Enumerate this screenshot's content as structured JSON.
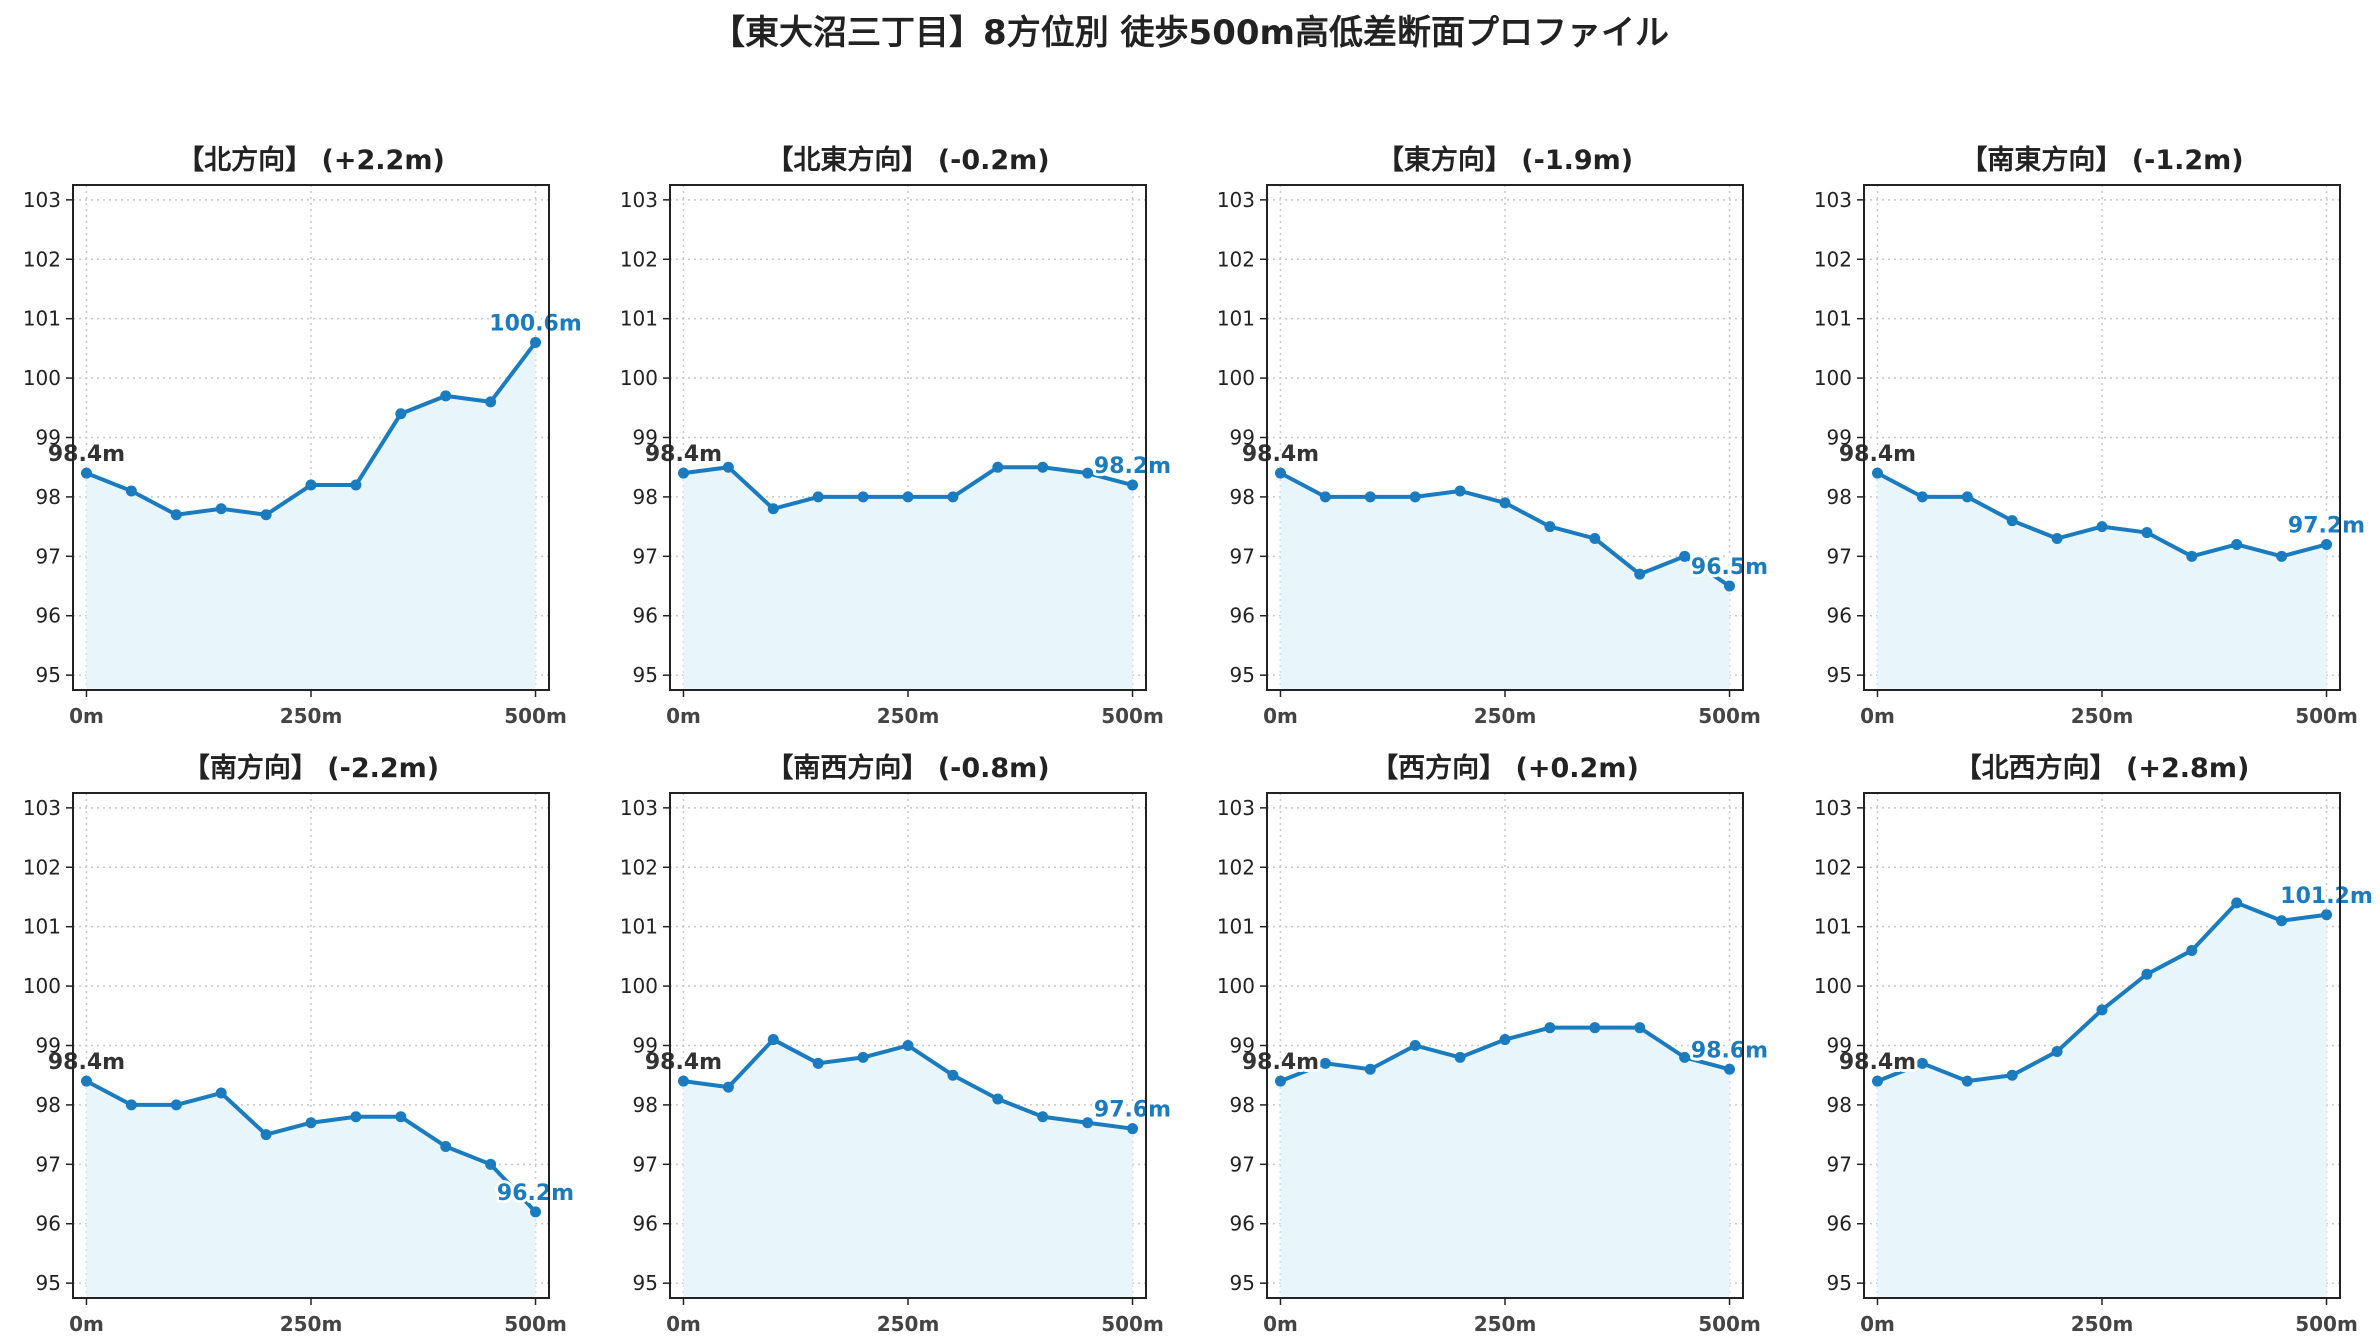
{
  "title": "【東大沼三丁目】8方位別 徒歩500m高低差断面プロファイル",
  "colors": {
    "line": "#1a7bbf",
    "fill": "#e8f6fb",
    "start_label": "#333333",
    "end_label": "#1a7bbf",
    "grid": "#c8c8c8"
  },
  "chart_data": [
    {
      "type": "area",
      "title": "【北方向】 (+2.2m)",
      "x": [
        0,
        50,
        100,
        150,
        200,
        250,
        300,
        350,
        400,
        450,
        500
      ],
      "y": [
        98.4,
        98.1,
        97.7,
        97.8,
        97.7,
        98.2,
        98.2,
        99.4,
        99.7,
        99.6,
        100.6
      ],
      "xticks": [
        0,
        250,
        500
      ],
      "xtick_labels": [
        "0m",
        "250m",
        "500m"
      ],
      "yticks": [
        95,
        96,
        97,
        98,
        99,
        100,
        101,
        102,
        103
      ],
      "ylim": [
        94.75,
        103.25
      ],
      "xlim": [
        -15,
        515
      ],
      "start_label": "98.4m",
      "end_label": "100.6m",
      "grid": true
    },
    {
      "type": "area",
      "title": "【北東方向】 (-0.2m)",
      "x": [
        0,
        50,
        100,
        150,
        200,
        250,
        300,
        350,
        400,
        450,
        500
      ],
      "y": [
        98.4,
        98.5,
        97.8,
        98.0,
        98.0,
        98.0,
        98.0,
        98.5,
        98.5,
        98.4,
        98.2
      ],
      "xticks": [
        0,
        250,
        500
      ],
      "xtick_labels": [
        "0m",
        "250m",
        "500m"
      ],
      "yticks": [
        95,
        96,
        97,
        98,
        99,
        100,
        101,
        102,
        103
      ],
      "ylim": [
        94.75,
        103.25
      ],
      "xlim": [
        -15,
        515
      ],
      "start_label": "98.4m",
      "end_label": "98.2m",
      "grid": true
    },
    {
      "type": "area",
      "title": "【東方向】 (-1.9m)",
      "x": [
        0,
        50,
        100,
        150,
        200,
        250,
        300,
        350,
        400,
        450,
        500
      ],
      "y": [
        98.4,
        98.0,
        98.0,
        98.0,
        98.1,
        97.9,
        97.5,
        97.3,
        96.7,
        97.0,
        96.5
      ],
      "xticks": [
        0,
        250,
        500
      ],
      "xtick_labels": [
        "0m",
        "250m",
        "500m"
      ],
      "yticks": [
        95,
        96,
        97,
        98,
        99,
        100,
        101,
        102,
        103
      ],
      "ylim": [
        94.75,
        103.25
      ],
      "xlim": [
        -15,
        515
      ],
      "start_label": "98.4m",
      "end_label": "96.5m",
      "grid": true
    },
    {
      "type": "area",
      "title": "【南東方向】 (-1.2m)",
      "x": [
        0,
        50,
        100,
        150,
        200,
        250,
        300,
        350,
        400,
        450,
        500
      ],
      "y": [
        98.4,
        98.0,
        98.0,
        97.6,
        97.3,
        97.5,
        97.4,
        97.0,
        97.2,
        97.0,
        97.2
      ],
      "xticks": [
        0,
        250,
        500
      ],
      "xtick_labels": [
        "0m",
        "250m",
        "500m"
      ],
      "yticks": [
        95,
        96,
        97,
        98,
        99,
        100,
        101,
        102,
        103
      ],
      "ylim": [
        94.75,
        103.25
      ],
      "xlim": [
        -15,
        515
      ],
      "start_label": "98.4m",
      "end_label": "97.2m",
      "grid": true
    },
    {
      "type": "area",
      "title": "【南方向】 (-2.2m)",
      "x": [
        0,
        50,
        100,
        150,
        200,
        250,
        300,
        350,
        400,
        450,
        500
      ],
      "y": [
        98.4,
        98.0,
        98.0,
        98.2,
        97.5,
        97.7,
        97.8,
        97.8,
        97.3,
        97.0,
        96.2
      ],
      "xticks": [
        0,
        250,
        500
      ],
      "xtick_labels": [
        "0m",
        "250m",
        "500m"
      ],
      "yticks": [
        95,
        96,
        97,
        98,
        99,
        100,
        101,
        102,
        103
      ],
      "ylim": [
        94.75,
        103.25
      ],
      "xlim": [
        -15,
        515
      ],
      "start_label": "98.4m",
      "end_label": "96.2m",
      "grid": true
    },
    {
      "type": "area",
      "title": "【南西方向】 (-0.8m)",
      "x": [
        0,
        50,
        100,
        150,
        200,
        250,
        300,
        350,
        400,
        450,
        500
      ],
      "y": [
        98.4,
        98.3,
        99.1,
        98.7,
        98.8,
        99.0,
        98.5,
        98.1,
        97.8,
        97.7,
        97.6
      ],
      "xticks": [
        0,
        250,
        500
      ],
      "xtick_labels": [
        "0m",
        "250m",
        "500m"
      ],
      "yticks": [
        95,
        96,
        97,
        98,
        99,
        100,
        101,
        102,
        103
      ],
      "ylim": [
        94.75,
        103.25
      ],
      "xlim": [
        -15,
        515
      ],
      "start_label": "98.4m",
      "end_label": "97.6m",
      "grid": true
    },
    {
      "type": "area",
      "title": "【西方向】 (+0.2m)",
      "x": [
        0,
        50,
        100,
        150,
        200,
        250,
        300,
        350,
        400,
        450,
        500
      ],
      "y": [
        98.4,
        98.7,
        98.6,
        99.0,
        98.8,
        99.1,
        99.3,
        99.3,
        99.3,
        98.8,
        98.6
      ],
      "xticks": [
        0,
        250,
        500
      ],
      "xtick_labels": [
        "0m",
        "250m",
        "500m"
      ],
      "yticks": [
        95,
        96,
        97,
        98,
        99,
        100,
        101,
        102,
        103
      ],
      "ylim": [
        94.75,
        103.25
      ],
      "xlim": [
        -15,
        515
      ],
      "start_label": "98.4m",
      "end_label": "98.6m",
      "grid": true
    },
    {
      "type": "area",
      "title": "【北西方向】 (+2.8m)",
      "x": [
        0,
        50,
        100,
        150,
        200,
        250,
        300,
        350,
        400,
        450,
        500
      ],
      "y": [
        98.4,
        98.7,
        98.4,
        98.5,
        98.9,
        99.6,
        100.2,
        100.6,
        101.4,
        101.1,
        101.2
      ],
      "xticks": [
        0,
        250,
        500
      ],
      "xtick_labels": [
        "0m",
        "250m",
        "500m"
      ],
      "yticks": [
        95,
        96,
        97,
        98,
        99,
        100,
        101,
        102,
        103
      ],
      "ylim": [
        94.75,
        103.25
      ],
      "xlim": [
        -15,
        515
      ],
      "start_label": "98.4m",
      "end_label": "101.2m",
      "grid": true
    }
  ]
}
